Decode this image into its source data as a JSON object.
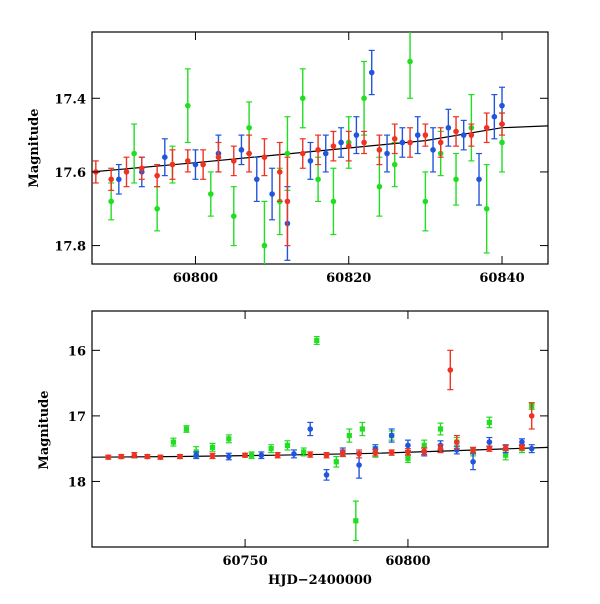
{
  "chart_data": [
    {
      "type": "scatter",
      "title": "",
      "xlabel": "",
      "ylabel": "Magnitude",
      "xlim": [
        60786.5,
        60846
      ],
      "ylim": [
        17.85,
        17.22
      ],
      "y_inverted": true,
      "xticks": [
        60800,
        60820,
        60840
      ],
      "xtick_labels": [
        "60800",
        "60820",
        "60840"
      ],
      "yticks": [
        17.4,
        17.6,
        17.8
      ],
      "ytick_labels": [
        "17.4",
        "17.6",
        "17.8"
      ],
      "grid": false,
      "legend": "none",
      "model_curve": {
        "color": "#000000",
        "x": [
          60786.5,
          60800,
          60810,
          60820,
          60830,
          60840,
          60846
        ],
        "y": [
          17.6,
          17.575,
          17.555,
          17.535,
          17.515,
          17.48,
          17.475
        ]
      },
      "series": [
        {
          "color": "#22dd22",
          "marker": "circle-errorbar",
          "x": [
            60789,
            60792,
            60795,
            60797,
            60799,
            60802,
            60805,
            60807,
            60809,
            60811,
            60812,
            60814,
            60816,
            60818,
            60820,
            60822,
            60824,
            60826,
            60828,
            60830,
            60832,
            60834,
            60836,
            60838,
            60840
          ],
          "y": [
            17.68,
            17.55,
            17.7,
            17.58,
            17.42,
            17.66,
            17.72,
            17.48,
            17.8,
            17.68,
            17.55,
            17.4,
            17.62,
            17.68,
            17.52,
            17.4,
            17.64,
            17.58,
            17.3,
            17.68,
            17.55,
            17.62,
            17.48,
            17.7,
            17.52
          ],
          "err": [
            0.05,
            0.08,
            0.06,
            0.05,
            0.1,
            0.06,
            0.08,
            0.07,
            0.12,
            0.09,
            0.1,
            0.08,
            0.06,
            0.09,
            0.07,
            0.1,
            0.08,
            0.06,
            0.1,
            0.08,
            0.06,
            0.07,
            0.09,
            0.12,
            0.08
          ]
        },
        {
          "color": "#2255dd",
          "marker": "circle-errorbar",
          "x": [
            60790,
            60793,
            60796,
            60800,
            60803,
            60806,
            60808,
            60810,
            60812,
            60815,
            60817,
            60819,
            60821,
            60823,
            60825,
            60827,
            60829,
            60831,
            60833,
            60835,
            60837,
            60839,
            60840
          ],
          "y": [
            17.62,
            17.6,
            17.56,
            17.58,
            17.55,
            17.54,
            17.62,
            17.66,
            17.74,
            17.57,
            17.55,
            17.52,
            17.5,
            17.33,
            17.55,
            17.52,
            17.5,
            17.54,
            17.48,
            17.5,
            17.62,
            17.45,
            17.42
          ],
          "err": [
            0.04,
            0.04,
            0.05,
            0.04,
            0.05,
            0.04,
            0.06,
            0.07,
            0.1,
            0.05,
            0.05,
            0.04,
            0.05,
            0.06,
            0.05,
            0.04,
            0.05,
            0.06,
            0.05,
            0.04,
            0.07,
            0.06,
            0.05
          ]
        },
        {
          "color": "#ee3322",
          "marker": "circle-errorbar",
          "x": [
            60787,
            60789,
            60791,
            60793,
            60795,
            60797,
            60799,
            60801,
            60803,
            60805,
            60807,
            60809,
            60811,
            60812,
            60814,
            60816,
            60818,
            60820,
            60822,
            60824,
            60826,
            60828,
            60830,
            60832,
            60834,
            60836,
            60838,
            60840
          ],
          "y": [
            17.6,
            17.62,
            17.6,
            17.59,
            17.61,
            17.58,
            17.57,
            17.58,
            17.56,
            17.57,
            17.55,
            17.56,
            17.6,
            17.68,
            17.55,
            17.54,
            17.53,
            17.53,
            17.52,
            17.54,
            17.51,
            17.52,
            17.5,
            17.52,
            17.49,
            17.5,
            17.48,
            17.47
          ],
          "err": [
            0.03,
            0.03,
            0.04,
            0.03,
            0.03,
            0.04,
            0.03,
            0.04,
            0.04,
            0.04,
            0.05,
            0.05,
            0.08,
            0.12,
            0.04,
            0.04,
            0.04,
            0.04,
            0.03,
            0.04,
            0.04,
            0.04,
            0.03,
            0.04,
            0.04,
            0.03,
            0.04,
            0.03
          ]
        }
      ]
    },
    {
      "type": "scatter",
      "title": "",
      "xlabel": "HJD−2400000",
      "ylabel": "Magnitude",
      "xlim": [
        60703,
        60843
      ],
      "ylim": [
        19.0,
        15.4
      ],
      "y_inverted": true,
      "xticks": [
        60750,
        60800
      ],
      "xtick_labels": [
        "60750",
        "60800"
      ],
      "yticks": [
        16,
        17,
        18
      ],
      "ytick_labels": [
        "16",
        "17",
        "18"
      ],
      "grid": false,
      "legend": "none",
      "model_curve": {
        "color": "#000000",
        "x": [
          60703,
          60730,
          60760,
          60790,
          60815,
          60843
        ],
        "y": [
          17.63,
          17.62,
          17.6,
          17.57,
          17.53,
          17.48
        ]
      },
      "series": [
        {
          "color": "#22dd22",
          "marker": "square-errorbar",
          "x": [
            60728,
            60732,
            60735,
            60740,
            60745,
            60752,
            60758,
            60763,
            60768,
            60772,
            60778,
            60782,
            60784,
            60786,
            60790,
            60795,
            60800,
            60805,
            60810,
            60815,
            60820,
            60825,
            60830,
            60835,
            60838
          ],
          "y": [
            17.4,
            17.2,
            17.55,
            17.48,
            17.35,
            17.6,
            17.5,
            17.45,
            17.55,
            15.85,
            17.7,
            17.3,
            18.6,
            17.2,
            17.55,
            17.3,
            17.65,
            17.45,
            17.2,
            17.4,
            17.55,
            17.1,
            17.6,
            17.5,
            16.85
          ],
          "err": [
            0.06,
            0.05,
            0.08,
            0.06,
            0.06,
            0.05,
            0.06,
            0.07,
            0.06,
            0.06,
            0.08,
            0.1,
            0.3,
            0.1,
            0.08,
            0.07,
            0.06,
            0.08,
            0.09,
            0.07,
            0.06,
            0.08,
            0.07,
            0.06,
            0.05
          ]
        },
        {
          "color": "#2255dd",
          "marker": "circle-errorbar",
          "x": [
            60735,
            60745,
            60755,
            60765,
            60770,
            60775,
            60780,
            60785,
            60790,
            60795,
            60800,
            60805,
            60810,
            60815,
            60820,
            60825,
            60830,
            60835,
            60838
          ],
          "y": [
            17.6,
            17.62,
            17.6,
            17.58,
            17.2,
            17.9,
            17.55,
            17.75,
            17.5,
            17.3,
            17.45,
            17.55,
            17.45,
            17.52,
            17.7,
            17.4,
            17.5,
            17.4,
            17.5
          ],
          "err": [
            0.05,
            0.05,
            0.05,
            0.06,
            0.1,
            0.08,
            0.06,
            0.2,
            0.06,
            0.1,
            0.08,
            0.06,
            0.07,
            0.06,
            0.12,
            0.07,
            0.06,
            0.05,
            0.06
          ]
        },
        {
          "color": "#ee3322",
          "marker": "circle-errorbar",
          "x": [
            60708,
            60712,
            60716,
            60720,
            60724,
            60730,
            60740,
            60750,
            60760,
            60770,
            60775,
            60780,
            60785,
            60790,
            60795,
            60800,
            60805,
            60810,
            60813,
            60815,
            60820,
            60825,
            60830,
            60835,
            60838
          ],
          "y": [
            17.63,
            17.62,
            17.6,
            17.62,
            17.63,
            17.62,
            17.61,
            17.6,
            17.6,
            17.59,
            17.6,
            17.57,
            17.58,
            17.56,
            17.56,
            17.55,
            17.54,
            17.5,
            16.3,
            17.4,
            17.52,
            17.5,
            17.49,
            17.48,
            17.0
          ],
          "err": [
            0.03,
            0.03,
            0.04,
            0.03,
            0.03,
            0.03,
            0.04,
            0.03,
            0.04,
            0.04,
            0.04,
            0.05,
            0.06,
            0.05,
            0.04,
            0.05,
            0.05,
            0.06,
            0.3,
            0.1,
            0.04,
            0.04,
            0.04,
            0.04,
            0.2
          ]
        }
      ]
    }
  ]
}
